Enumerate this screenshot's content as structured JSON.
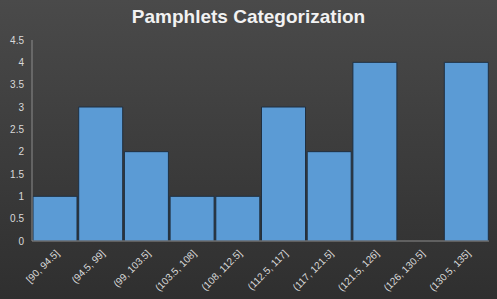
{
  "chart_data": {
    "type": "histogram",
    "title": "Pamphlets Categorization",
    "categories": [
      "[90, 94.5]",
      "(94.5, 99]",
      "(99, 103.5]",
      "(103.5, 108]",
      "(108, 112.5]",
      "(112.5, 117]",
      "(117, 121.5]",
      "(121.5, 126]",
      "(126, 130.5]",
      "(130.5, 135]"
    ],
    "values": [
      1,
      3,
      2,
      1,
      1,
      3,
      2,
      4,
      0,
      4
    ],
    "color": "#5b9bd5",
    "ylim": [
      0,
      4.5
    ],
    "yticks": [
      0,
      0.5,
      1,
      1.5,
      2,
      2.5,
      3,
      3.5,
      4,
      4.5
    ],
    "grid": false
  }
}
